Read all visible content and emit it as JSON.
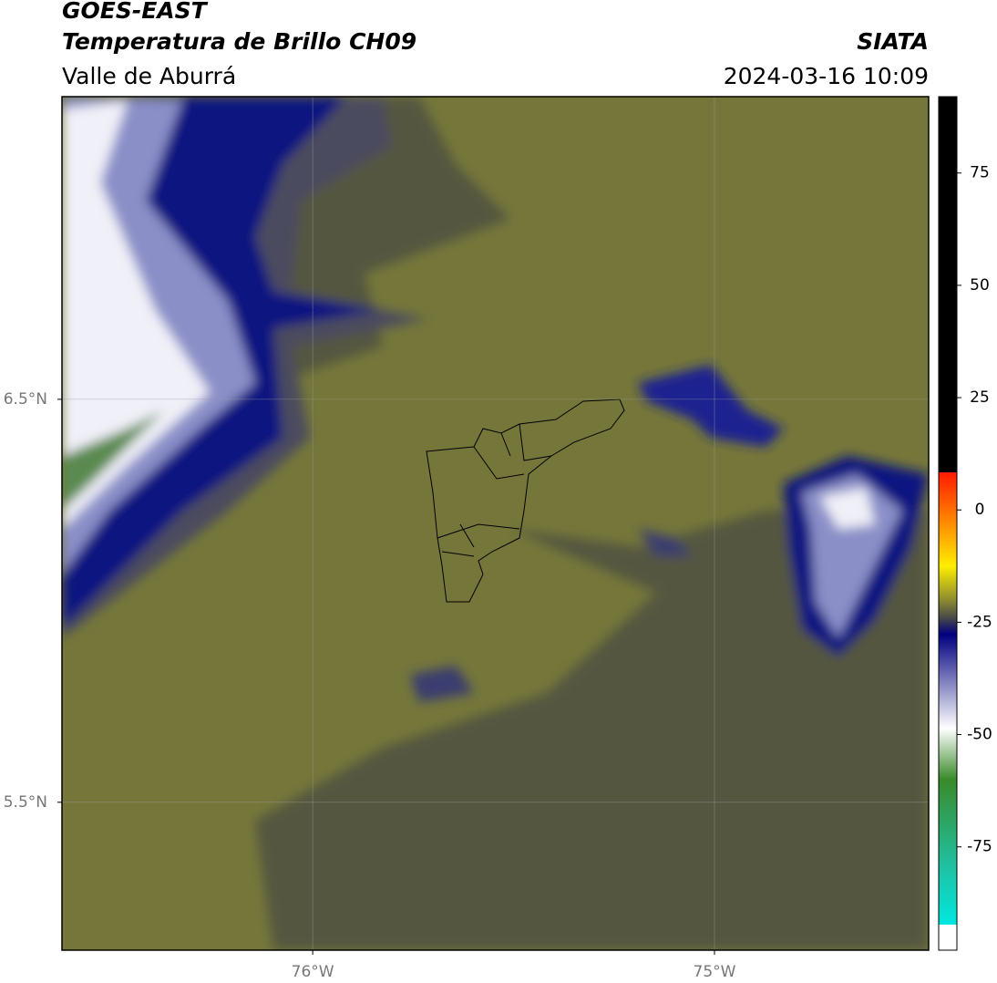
{
  "header": {
    "title": "GOES-EAST",
    "subtitle": "Temperatura de Brillo CH09",
    "brand": "SIATA",
    "region": "Valle de Aburrá",
    "datetime": "2024-03-16 10:09"
  },
  "chart_data": {
    "type": "map",
    "xlim": [
      -76.624,
      -74.467
    ],
    "ylim": [
      5.133,
      7.251
    ],
    "xticks": [
      {
        "value": -76,
        "label": "76°W"
      },
      {
        "value": -75,
        "label": "75°W"
      }
    ],
    "yticks": [
      {
        "value": 6.5,
        "label": "6.5°N"
      },
      {
        "value": 5.5,
        "label": "5.5°N"
      }
    ],
    "grid": true,
    "colorbar": {
      "lim": [
        -98,
        92
      ],
      "ticks": [
        75,
        50,
        25,
        0,
        -25,
        -50,
        -75
      ]
    }
  }
}
